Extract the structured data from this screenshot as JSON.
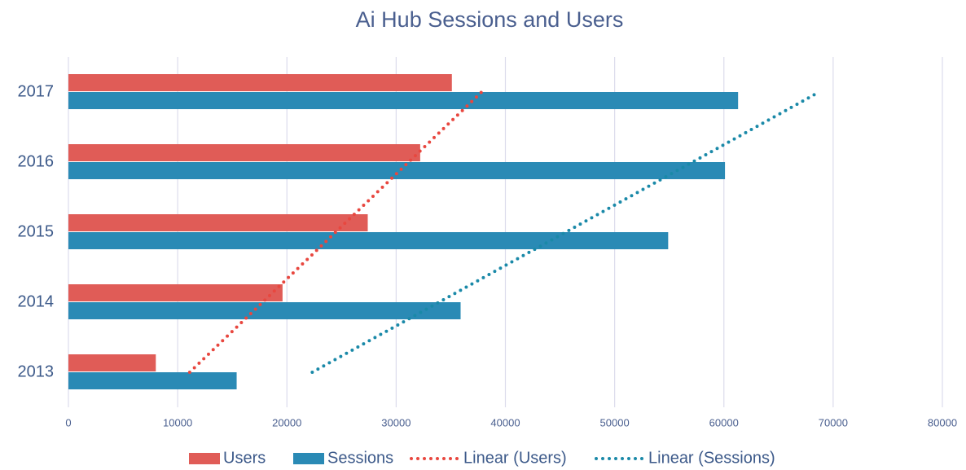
{
  "chart_data": {
    "type": "bar",
    "orientation": "horizontal",
    "title": "Ai Hub Sessions and Users",
    "categories": [
      "2013",
      "2014",
      "2015",
      "2016",
      "2017"
    ],
    "series": [
      {
        "name": "Users",
        "color": "#e05c57",
        "values": [
          8000,
          19600,
          27400,
          32200,
          35100
        ]
      },
      {
        "name": "Sessions",
        "color": "#2a8ab5",
        "values": [
          15400,
          35900,
          54900,
          60100,
          61300
        ]
      },
      {
        "name": "Linear (Users)",
        "type": "line",
        "dash": "dotted",
        "color": "#e8473f",
        "values": [
          11100,
          17780,
          24460,
          31140,
          37820
        ]
      },
      {
        "name": "Linear (Sessions)",
        "type": "line",
        "dash": "dotted",
        "color": "#1a89a8",
        "values": [
          22320,
          33920,
          45520,
          57120,
          68720
        ]
      }
    ],
    "xlim": [
      0,
      80000
    ],
    "xticks": [
      0,
      10000,
      20000,
      30000,
      40000,
      50000,
      60000,
      70000,
      80000
    ],
    "grid": true,
    "legend": "bottom"
  }
}
